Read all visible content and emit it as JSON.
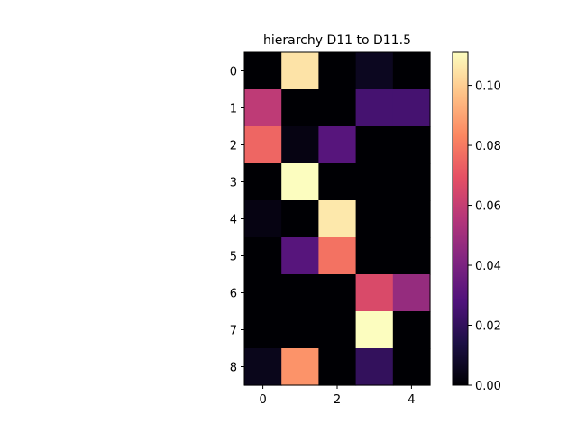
{
  "chart_data": {
    "type": "heatmap",
    "title": "hierarchy D11 to D11.5",
    "xlabel": "",
    "ylabel": "",
    "rows": 9,
    "cols": 5,
    "x_ticks": [
      0,
      2,
      4
    ],
    "y_ticks": [
      0,
      1,
      2,
      3,
      4,
      5,
      6,
      7,
      8
    ],
    "values": [
      [
        0.0,
        0.105,
        0.0,
        0.006,
        0.0
      ],
      [
        0.058,
        0.0,
        0.0,
        0.025,
        0.025
      ],
      [
        0.075,
        0.003,
        0.03,
        0.0,
        0.0
      ],
      [
        0.0,
        0.111,
        0.0,
        0.0,
        0.0
      ],
      [
        0.003,
        0.0,
        0.106,
        0.0,
        0.0
      ],
      [
        0.0,
        0.03,
        0.078,
        0.0,
        0.0
      ],
      [
        0.0,
        0.0,
        0.0,
        0.066,
        0.047
      ],
      [
        0.0,
        0.0,
        0.0,
        0.111,
        0.0
      ],
      [
        0.005,
        0.086,
        0.0,
        0.02,
        0.0
      ]
    ],
    "colormap": "magma",
    "colorbar": {
      "min": 0.0,
      "max": 0.111,
      "ticks": [
        0.0,
        0.02,
        0.04,
        0.06,
        0.08,
        0.1
      ],
      "tick_labels": [
        "0.00",
        "0.02",
        "0.04",
        "0.06",
        "0.08",
        "0.10"
      ]
    },
    "grid": false
  }
}
